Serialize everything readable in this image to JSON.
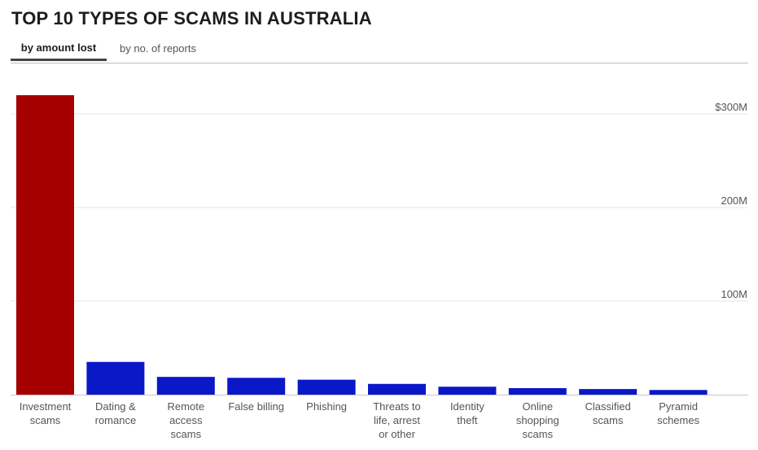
{
  "chart_data": {
    "type": "bar",
    "title": "TOP 10 TYPES OF SCAMS IN AUSTRALIA",
    "tabs": [
      {
        "label": "by amount lost",
        "active": true
      },
      {
        "label": "by no. of reports",
        "active": false
      }
    ],
    "categories": [
      [
        "Investment",
        "scams"
      ],
      [
        "Dating &",
        "romance"
      ],
      [
        "Remote",
        "access",
        "scams"
      ],
      [
        "False billing"
      ],
      [
        "Phishing"
      ],
      [
        "Threats to",
        "life, arrest",
        "or other"
      ],
      [
        "Identity",
        "theft"
      ],
      [
        "Online",
        "shopping",
        "scams"
      ],
      [
        "Classified",
        "scams"
      ],
      [
        "Pyramid",
        "schemes"
      ]
    ],
    "values": [
      320,
      35,
      19,
      18,
      16,
      11.5,
      8.5,
      7,
      6,
      5
    ],
    "ylim": [
      0,
      300
    ],
    "yticks": [
      {
        "value": 100,
        "label": "100M"
      },
      {
        "value": 200,
        "label": "200M"
      },
      {
        "value": 300,
        "label": "$300M"
      }
    ],
    "xlabel": "",
    "ylabel": "",
    "grid": true,
    "colors": {
      "highlight": "#a50000",
      "default": "#0a18c8"
    }
  }
}
